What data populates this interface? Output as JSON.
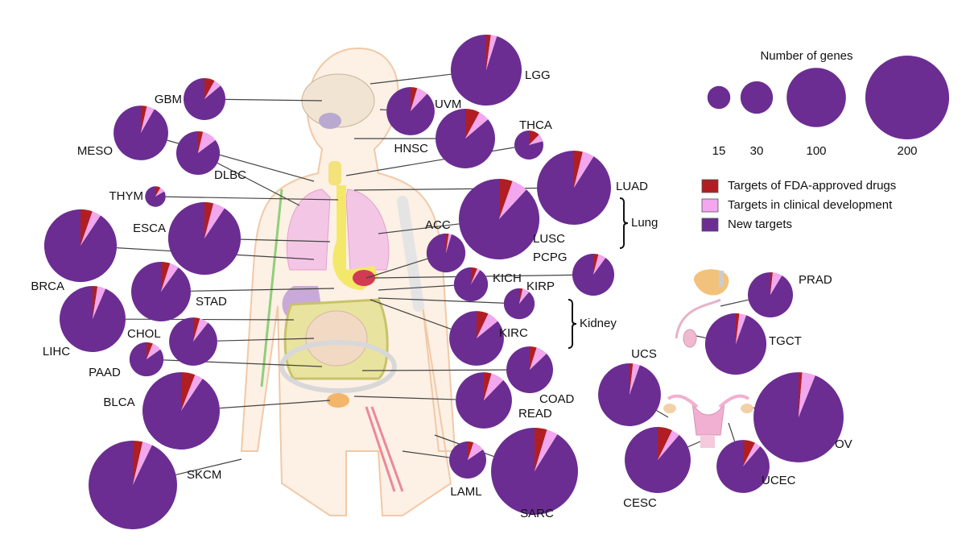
{
  "legend": {
    "title": "Number of genes",
    "sizes": [
      15,
      30,
      100,
      200
    ]
  },
  "categories": [
    {
      "key": "fda",
      "label": "Targets of FDA-approved drugs",
      "color": "#b01e23"
    },
    {
      "key": "clinical",
      "label": "Targets in clinical development",
      "color": "#f2a7ee"
    },
    {
      "key": "new",
      "label": "New targets",
      "color": "#6b2d92"
    }
  ],
  "groups": [
    "Lung",
    "Kidney"
  ],
  "cancers": [
    {
      "label": "LGG",
      "fda": 3,
      "clinical": 4,
      "new": 136
    },
    {
      "label": "GBM",
      "fda": 4,
      "clinical": 3,
      "new": 43
    },
    {
      "label": "UVM",
      "fda": 3,
      "clinical": 5,
      "new": 58
    },
    {
      "label": "MESO",
      "fda": 3,
      "clinical": 4,
      "new": 78
    },
    {
      "label": "HNSC",
      "fda": 8,
      "clinical": 6,
      "new": 87
    },
    {
      "label": "THCA",
      "fda": 3,
      "clinical": 2,
      "new": 19
    },
    {
      "label": "DLBC",
      "fda": 2,
      "clinical": 6,
      "new": 46
    },
    {
      "label": "LUAD",
      "fda": 6,
      "clinical": 8,
      "new": 142
    },
    {
      "label": "THYM",
      "fda": 1,
      "clinical": 1,
      "new": 10
    },
    {
      "label": "ESCA",
      "fda": 6,
      "clinical": 8,
      "new": 136
    },
    {
      "label": "LUSC",
      "fda": 10,
      "clinical": 12,
      "new": 163
    },
    {
      "label": "BRCA",
      "fda": 8,
      "clinical": 6,
      "new": 136
    },
    {
      "label": "ACC",
      "fda": 1,
      "clinical": 1,
      "new": 41
    },
    {
      "label": "PCPG",
      "fda": 2,
      "clinical": 3,
      "new": 45
    },
    {
      "label": "STAD",
      "fda": 5,
      "clinical": 5,
      "new": 91
    },
    {
      "label": "KICH",
      "fda": 2,
      "clinical": 1,
      "new": 30
    },
    {
      "label": "KIRP",
      "fda": 1,
      "clinical": 2,
      "new": 24
    },
    {
      "label": "LIHC",
      "fda": 3,
      "clinical": 5,
      "new": 116
    },
    {
      "label": "CHOL",
      "fda": 3,
      "clinical": 4,
      "new": 59
    },
    {
      "label": "KIRC",
      "fda": 6,
      "clinical": 6,
      "new": 73
    },
    {
      "label": "PAAD",
      "fda": 2,
      "clinical": 3,
      "new": 28
    },
    {
      "label": "COAD",
      "fda": 3,
      "clinical": 5,
      "new": 54
    },
    {
      "label": "BLCA",
      "fda": 10,
      "clinical": 6,
      "new": 154
    },
    {
      "label": "READ",
      "fda": 4,
      "clinical": 7,
      "new": 79
    },
    {
      "label": "SKCM",
      "fda": 8,
      "clinical": 8,
      "new": 207
    },
    {
      "label": "LAML",
      "fda": 2,
      "clinical": 4,
      "new": 33
    },
    {
      "label": "SARC",
      "fda": 10,
      "clinical": 9,
      "new": 196
    },
    {
      "label": "PRAD",
      "fda": 1,
      "clinical": 4,
      "new": 53
    },
    {
      "label": "TGCT",
      "fda": 2,
      "clinical": 4,
      "new": 101
    },
    {
      "label": "UCS",
      "fda": 2,
      "clinical": 4,
      "new": 106
    },
    {
      "label": "OV",
      "fda": 3,
      "clinical": 11,
      "new": 217
    },
    {
      "label": "CESC",
      "fda": 9,
      "clinical": 5,
      "new": 110
    },
    {
      "label": "UCEC",
      "fda": 6,
      "clinical": 3,
      "new": 71
    }
  ]
}
